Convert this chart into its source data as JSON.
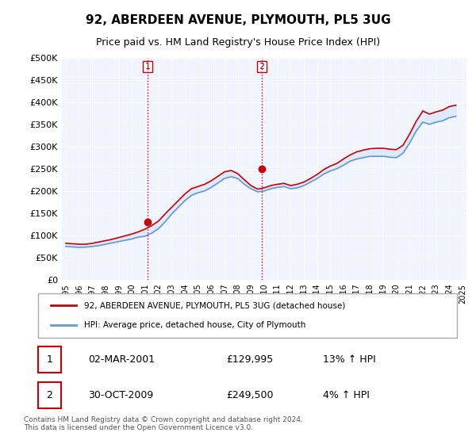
{
  "title": "92, ABERDEEN AVENUE, PLYMOUTH, PL5 3UG",
  "subtitle": "Price paid vs. HM Land Registry's House Price Index (HPI)",
  "ylabel_ticks": [
    "£0",
    "£50K",
    "£100K",
    "£150K",
    "£200K",
    "£250K",
    "£300K",
    "£350K",
    "£400K",
    "£450K",
    "£500K"
  ],
  "ytick_values": [
    0,
    50000,
    100000,
    150000,
    200000,
    250000,
    300000,
    350000,
    400000,
    450000,
    500000
  ],
  "xlim_years": [
    1995,
    2025
  ],
  "ylim": [
    0,
    500000
  ],
  "background_color": "#ffffff",
  "plot_bg_color": "#f0f4ff",
  "grid_color": "#ffffff",
  "line_color_red": "#cc0000",
  "line_color_blue": "#6699cc",
  "fill_color_blue": "#cce0ff",
  "vline_color": "#cc0000",
  "vline_style": ":",
  "marker1_year": 2001.17,
  "marker1_price": 129995,
  "marker1_label": "1",
  "marker2_year": 2009.83,
  "marker2_price": 249500,
  "marker2_label": "2",
  "legend_line1": "92, ABERDEEN AVENUE, PLYMOUTH, PL5 3UG (detached house)",
  "legend_line2": "HPI: Average price, detached house, City of Plymouth",
  "table_row1": [
    "1",
    "02-MAR-2001",
    "£129,995",
    "13% ↑ HPI"
  ],
  "table_row2": [
    "2",
    "30-OCT-2009",
    "£249,500",
    "4% ↑ HPI"
  ],
  "footnote": "Contains HM Land Registry data © Crown copyright and database right 2024.\nThis data is licensed under the Open Government Licence v3.0.",
  "hpi_years": [
    1995,
    1995.5,
    1996,
    1996.5,
    1997,
    1997.5,
    1998,
    1998.5,
    1999,
    1999.5,
    2000,
    2000.5,
    2001,
    2001.5,
    2002,
    2002.5,
    2003,
    2003.5,
    2004,
    2004.5,
    2005,
    2005.5,
    2006,
    2006.5,
    2007,
    2007.5,
    2008,
    2008.5,
    2009,
    2009.5,
    2010,
    2010.5,
    2011,
    2011.5,
    2012,
    2012.5,
    2013,
    2013.5,
    2014,
    2014.5,
    2015,
    2015.5,
    2016,
    2016.5,
    2017,
    2017.5,
    2018,
    2018.5,
    2019,
    2019.5,
    2020,
    2020.5,
    2021,
    2021.5,
    2022,
    2022.5,
    2023,
    2023.5,
    2024,
    2024.5
  ],
  "hpi_values": [
    75000,
    74000,
    73000,
    73500,
    75000,
    77000,
    80000,
    83000,
    86000,
    89000,
    92000,
    96000,
    98000,
    105000,
    115000,
    130000,
    148000,
    163000,
    178000,
    190000,
    196000,
    200000,
    208000,
    218000,
    228000,
    232000,
    228000,
    215000,
    205000,
    198000,
    200000,
    205000,
    208000,
    210000,
    205000,
    207000,
    212000,
    220000,
    228000,
    238000,
    245000,
    250000,
    258000,
    267000,
    272000,
    275000,
    278000,
    278000,
    278000,
    276000,
    275000,
    285000,
    308000,
    335000,
    355000,
    350000,
    355000,
    358000,
    365000,
    368000
  ],
  "price_years": [
    1995,
    1995.5,
    1996,
    1996.5,
    1997,
    1997.5,
    1998,
    1998.5,
    1999,
    1999.5,
    2000,
    2000.5,
    2001,
    2001.5,
    2002,
    2002.5,
    2003,
    2003.5,
    2004,
    2004.5,
    2005,
    2005.5,
    2006,
    2006.5,
    2007,
    2007.5,
    2008,
    2008.5,
    2009,
    2009.5,
    2010,
    2010.5,
    2011,
    2011.5,
    2012,
    2012.5,
    2013,
    2013.5,
    2014,
    2014.5,
    2015,
    2015.5,
    2016,
    2016.5,
    2017,
    2017.5,
    2018,
    2018.5,
    2019,
    2019.5,
    2020,
    2020.5,
    2021,
    2021.5,
    2022,
    2022.5,
    2023,
    2023.5,
    2024,
    2024.5
  ],
  "price_values": [
    82000,
    81000,
    80000,
    80000,
    82000,
    85000,
    88000,
    91000,
    95000,
    99000,
    103000,
    108000,
    114000,
    122000,
    132000,
    148000,
    163000,
    178000,
    193000,
    205000,
    210000,
    215000,
    223000,
    233000,
    243000,
    246000,
    239000,
    225000,
    212000,
    204000,
    207000,
    212000,
    215000,
    217000,
    212000,
    215000,
    220000,
    228000,
    237000,
    248000,
    256000,
    262000,
    272000,
    281000,
    288000,
    292000,
    295000,
    296000,
    296000,
    294000,
    293000,
    303000,
    328000,
    357000,
    380000,
    373000,
    378000,
    382000,
    390000,
    393000
  ]
}
